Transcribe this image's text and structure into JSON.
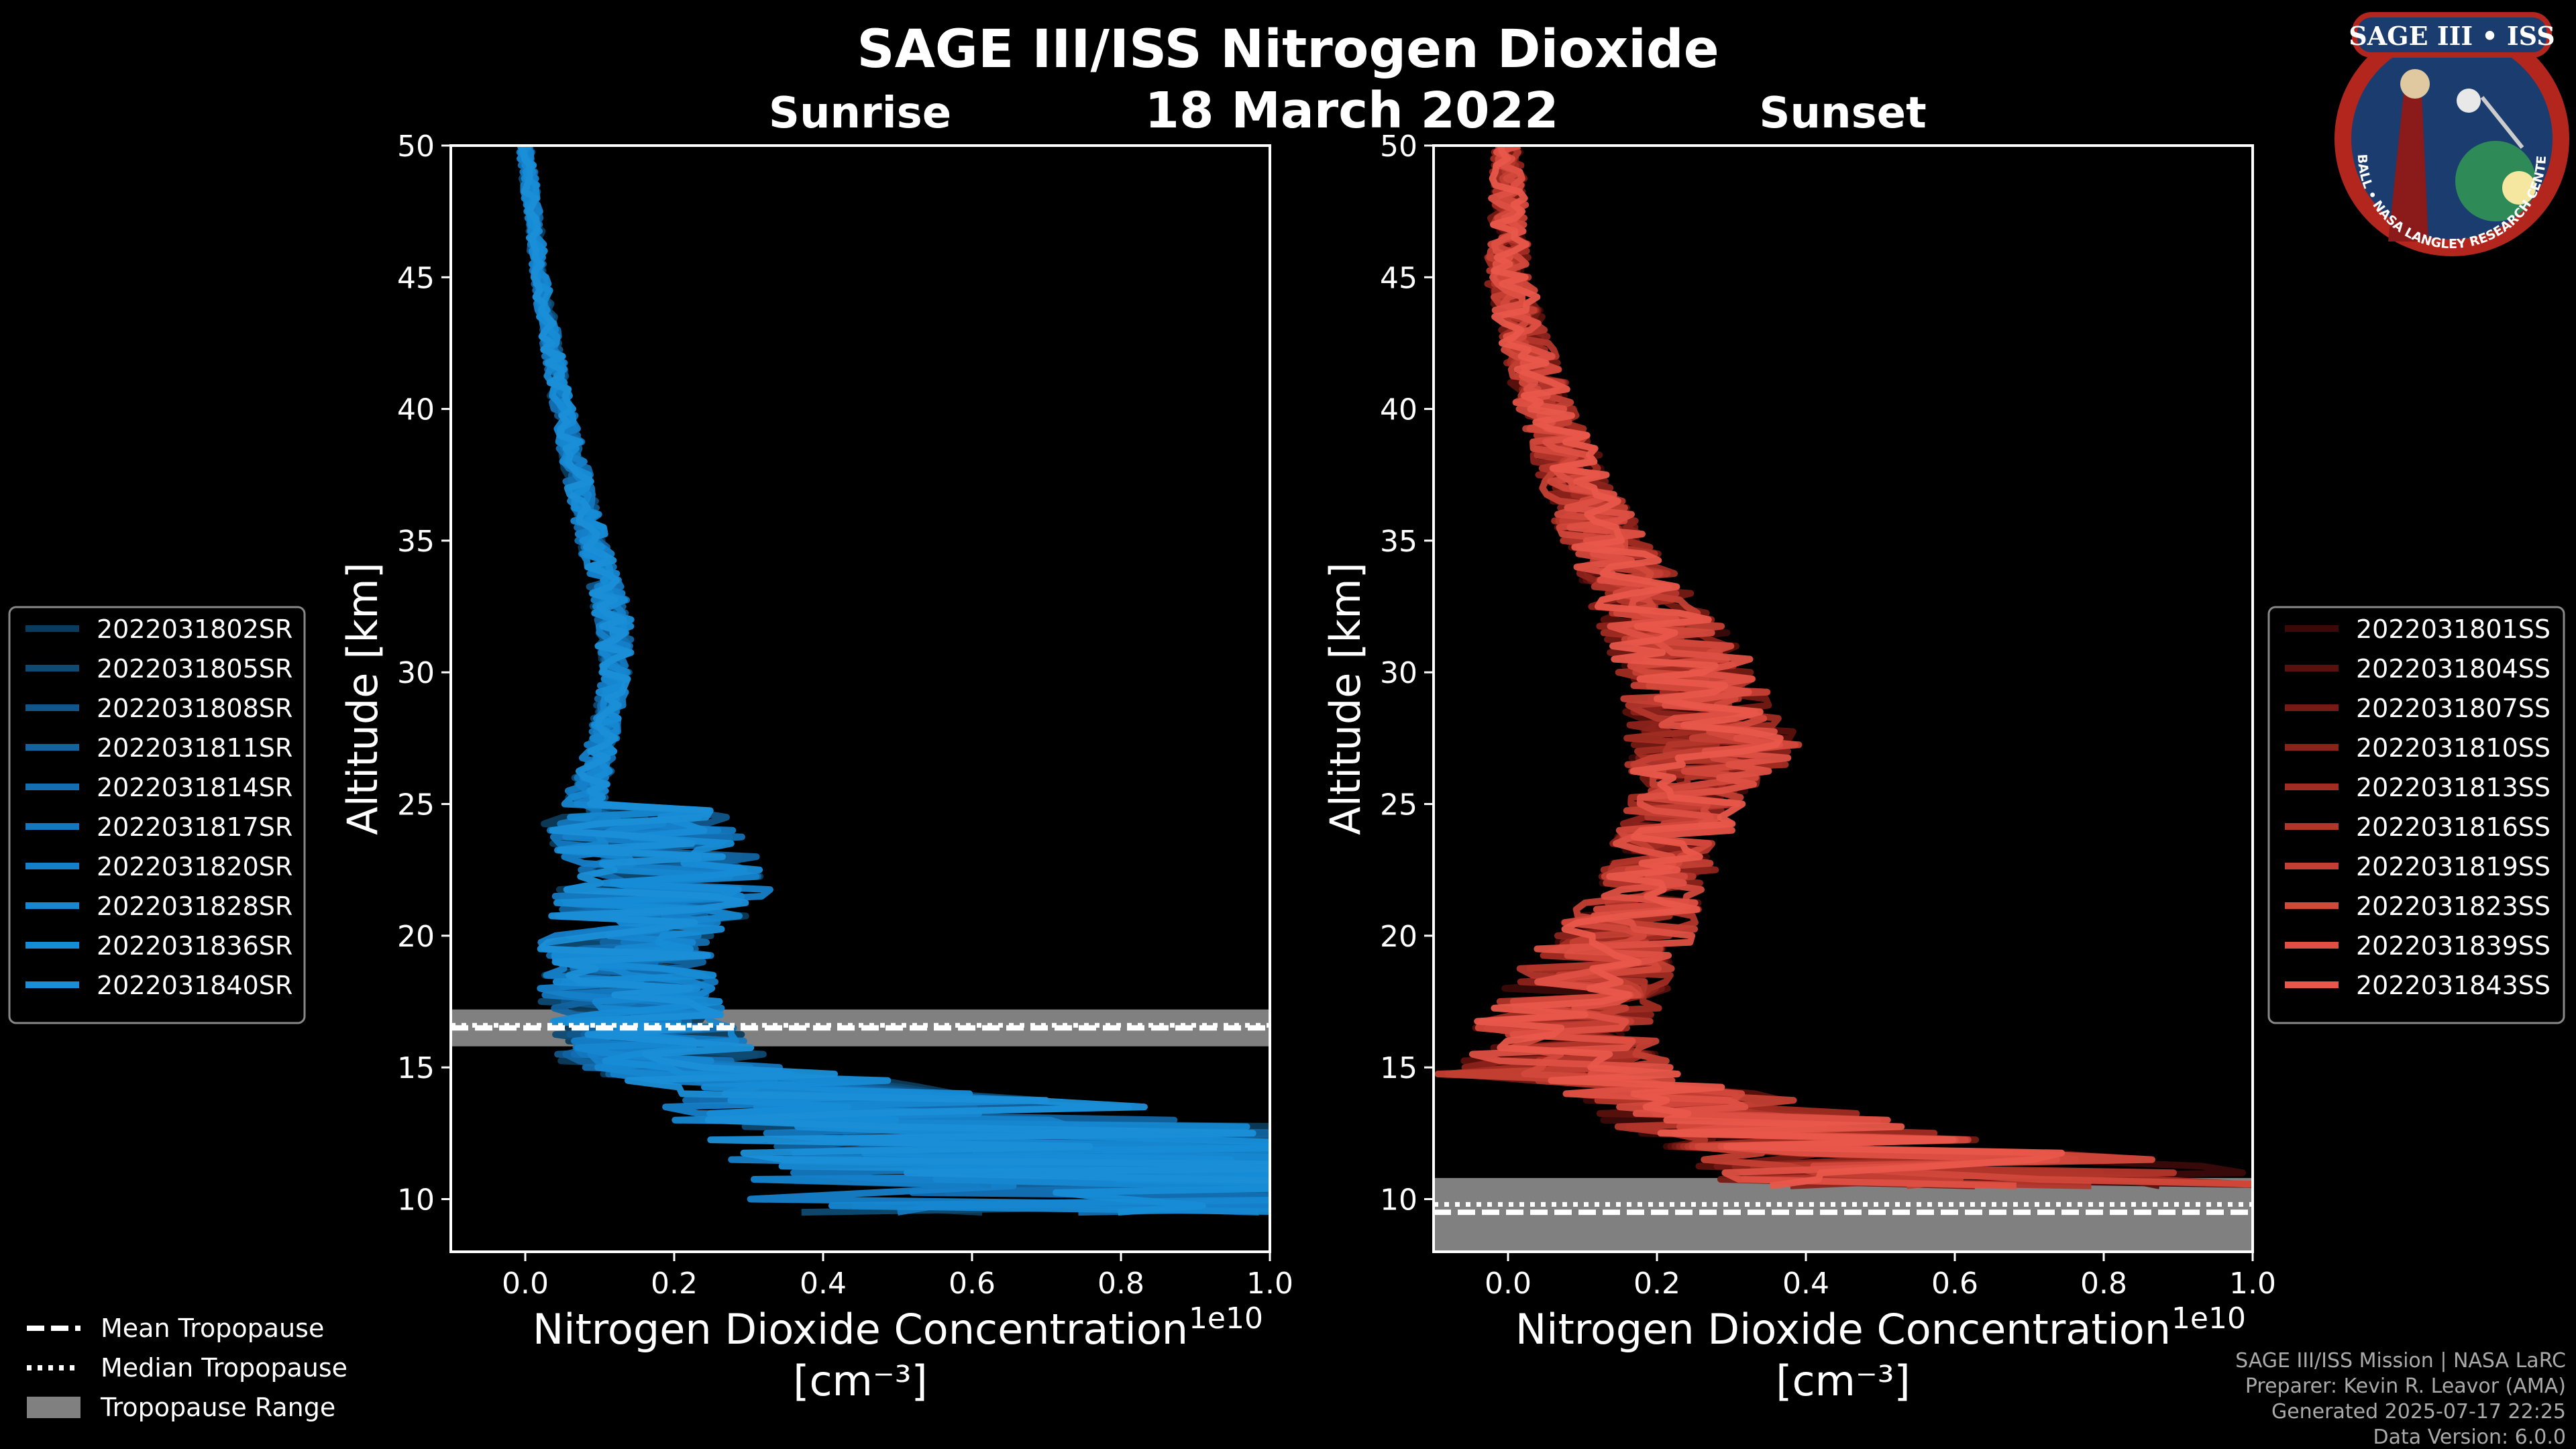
{
  "title": "SAGE III/ISS Nitrogen Dioxide",
  "date": "18 March 2022",
  "logo": {
    "text": "SAGE III • ISS",
    "ring_text": "BALL • NASA LANGLEY RESEARCH CENTER • TAS-I • ESA"
  },
  "colors": {
    "sunrise": "#1a8fd8",
    "sunset": "#e8574a",
    "background": "#000000",
    "tropopause_range": "#808080"
  },
  "chart_data": [
    {
      "type": "line",
      "title": "Sunrise",
      "xlabel": "Nitrogen Dioxide Concentration",
      "xunit": "[cm⁻³]",
      "xscale_label": "1e10",
      "ylabel": "Altitude [km]",
      "xlim": [
        -0.1,
        1.0
      ],
      "ylim": [
        8,
        50
      ],
      "xticks": [
        0.0,
        0.2,
        0.4,
        0.6,
        0.8,
        1.0
      ],
      "xtick_labels": [
        "0.0",
        "0.2",
        "0.4",
        "0.6",
        "0.8",
        "1.0"
      ],
      "yticks": [
        10,
        15,
        20,
        25,
        30,
        35,
        40,
        45,
        50
      ],
      "ytick_labels": [
        "10",
        "15",
        "20",
        "25",
        "30",
        "35",
        "40",
        "45",
        "50"
      ],
      "tropopause": {
        "mean": 16.5,
        "median": 16.6,
        "range": [
          15.8,
          17.2
        ]
      },
      "legend_position": "left",
      "series": [
        {
          "name": "2022031802SR",
          "color": "#0b3b5a",
          "seed": 2
        },
        {
          "name": "2022031805SR",
          "color": "#0e4a72",
          "seed": 5
        },
        {
          "name": "2022031808SR",
          "color": "#10568a",
          "seed": 8
        },
        {
          "name": "2022031811SR",
          "color": "#1264a0",
          "seed": 11
        },
        {
          "name": "2022031814SR",
          "color": "#136fb2",
          "seed": 14
        },
        {
          "name": "2022031817SR",
          "color": "#1478bf",
          "seed": 17
        },
        {
          "name": "2022031820SR",
          "color": "#1580c9",
          "seed": 20
        },
        {
          "name": "2022031828SR",
          "color": "#1687d1",
          "seed": 28
        },
        {
          "name": "2022031836SR",
          "color": "#178cd6",
          "seed": 36
        },
        {
          "name": "2022031840SR",
          "color": "#1a8fd8",
          "seed": 40
        }
      ],
      "profile": {
        "altitudes": [
          50,
          45,
          40,
          35,
          32,
          30,
          27,
          25,
          24.9,
          22,
          20,
          17,
          15,
          13,
          11,
          9.5
        ],
        "center": [
          0.0,
          0.02,
          0.05,
          0.09,
          0.12,
          0.12,
          0.1,
          0.08,
          0.12,
          0.14,
          0.12,
          0.12,
          0.15,
          0.3,
          0.4,
          0.4
        ],
        "spread": [
          0.01,
          0.01,
          0.015,
          0.02,
          0.025,
          0.02,
          0.02,
          0.03,
          0.25,
          0.3,
          0.25,
          0.25,
          0.3,
          0.8,
          1.1,
          1.1
        ]
      }
    },
    {
      "type": "line",
      "title": "Sunset",
      "xlabel": "Nitrogen Dioxide Concentration",
      "xunit": "[cm⁻³]",
      "xscale_label": "1e10",
      "ylabel": "Altitude [km]",
      "xlim": [
        -0.1,
        1.0
      ],
      "ylim": [
        8,
        50
      ],
      "xticks": [
        0.0,
        0.2,
        0.4,
        0.6,
        0.8,
        1.0
      ],
      "xtick_labels": [
        "0.0",
        "0.2",
        "0.4",
        "0.6",
        "0.8",
        "1.0"
      ],
      "yticks": [
        10,
        15,
        20,
        25,
        30,
        35,
        40,
        45,
        50
      ],
      "ytick_labels": [
        "10",
        "15",
        "20",
        "25",
        "30",
        "35",
        "40",
        "45",
        "50"
      ],
      "tropopause": {
        "mean": 9.5,
        "median": 9.8,
        "range": [
          8.0,
          10.8
        ]
      },
      "legend_position": "right",
      "series": [
        {
          "name": "2022031801SS",
          "color": "#3a0a08",
          "seed": 1
        },
        {
          "name": "2022031804SS",
          "color": "#5a110d",
          "seed": 4
        },
        {
          "name": "2022031807SS",
          "color": "#751a14",
          "seed": 7
        },
        {
          "name": "2022031810SS",
          "color": "#8c231b",
          "seed": 10
        },
        {
          "name": "2022031813SS",
          "color": "#a12c22",
          "seed": 13
        },
        {
          "name": "2022031816SS",
          "color": "#b3362b",
          "seed": 16
        },
        {
          "name": "2022031819SS",
          "color": "#c33f33",
          "seed": 19
        },
        {
          "name": "2022031823SS",
          "color": "#d2483b",
          "seed": 23
        },
        {
          "name": "2022031839SS",
          "color": "#de5043",
          "seed": 39
        },
        {
          "name": "2022031843SS",
          "color": "#e8574a",
          "seed": 43
        }
      ],
      "profile": {
        "altitudes": [
          50,
          45,
          40,
          35,
          32,
          30,
          27,
          25,
          22,
          20,
          17,
          15,
          14,
          12,
          10.5
        ],
        "center": [
          0.0,
          0.0,
          0.05,
          0.13,
          0.2,
          0.24,
          0.28,
          0.24,
          0.2,
          0.15,
          0.08,
          0.07,
          0.15,
          0.3,
          0.4
        ],
        "spread": [
          0.02,
          0.03,
          0.04,
          0.06,
          0.08,
          0.1,
          0.12,
          0.08,
          0.08,
          0.1,
          0.12,
          0.15,
          0.3,
          0.5,
          0.9
        ]
      }
    }
  ],
  "shared_legend": {
    "mean": "Mean Tropopause",
    "median": "Median Tropopause",
    "range": "Tropopause Range"
  },
  "credits": {
    "line1": "SAGE III/ISS Mission | NASA LaRC",
    "line2": "Preparer: Kevin R. Leavor (AMA)",
    "line3": "Generated 2025-07-17 22:25",
    "line4": "Data Version: 6.0.0"
  }
}
